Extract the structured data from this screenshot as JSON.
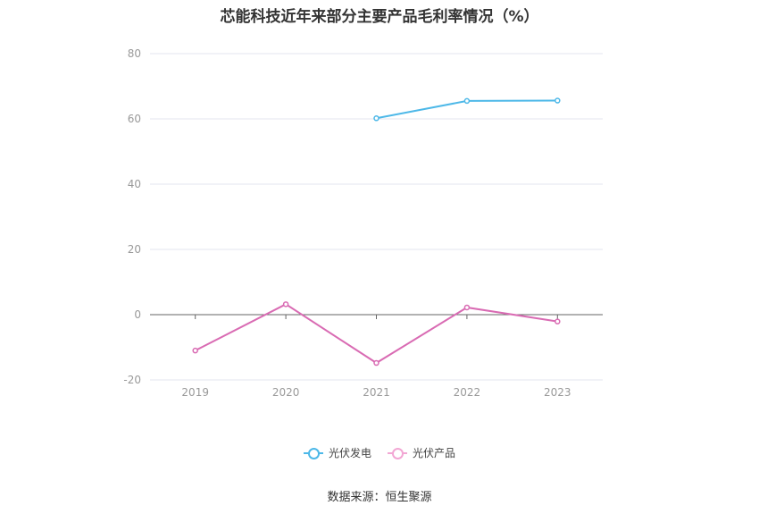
{
  "title": "芯能科技近年来部分主要产品毛利率情况（%）",
  "source": "数据来源：恒生聚源",
  "chart_data": {
    "type": "line",
    "categories": [
      "2019",
      "2020",
      "2021",
      "2022",
      "2023"
    ],
    "ylim": [
      -20,
      80
    ],
    "yticks": [
      80,
      60,
      40,
      20,
      0,
      -20
    ],
    "grid": true,
    "legend_position": "bottom-center",
    "series": [
      {
        "name": "光伏发电",
        "color": "#4db8e8",
        "values": [
          null,
          null,
          60.2,
          65.5,
          65.6
        ]
      },
      {
        "name": "光伏产品",
        "color": "#d96bb3",
        "values": [
          -11.0,
          3.2,
          -14.8,
          2.2,
          -2.1
        ]
      }
    ]
  }
}
